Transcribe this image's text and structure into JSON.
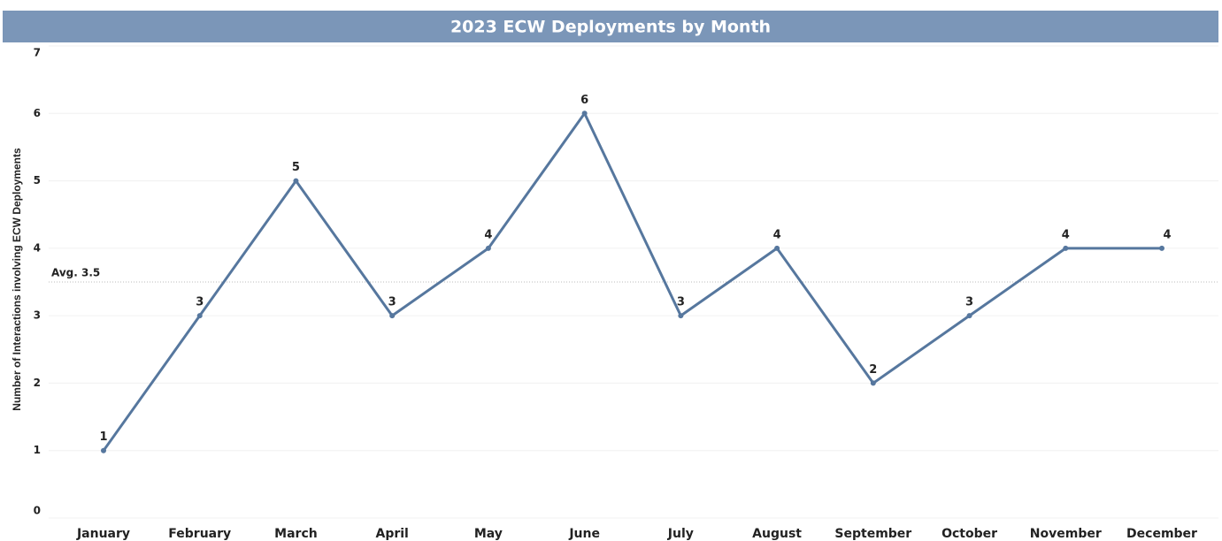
{
  "chart_data": {
    "type": "line",
    "title": "2023 ECW Deployments by Month",
    "y_label": "Number of Interactions involving ECW Deployments",
    "categories": [
      "January",
      "February",
      "March",
      "April",
      "May",
      "June",
      "July",
      "August",
      "September",
      "October",
      "November",
      "December"
    ],
    "values": [
      1,
      3,
      5,
      3,
      4,
      6,
      3,
      4,
      2,
      3,
      4,
      4
    ],
    "color": "#56779e",
    "ylim": [
      0,
      7
    ],
    "yticks": [
      0,
      1,
      2,
      3,
      4,
      5,
      6,
      7
    ],
    "grid": true,
    "reference_line": {
      "value": 3.5,
      "label": "Avg. 3.5"
    }
  }
}
